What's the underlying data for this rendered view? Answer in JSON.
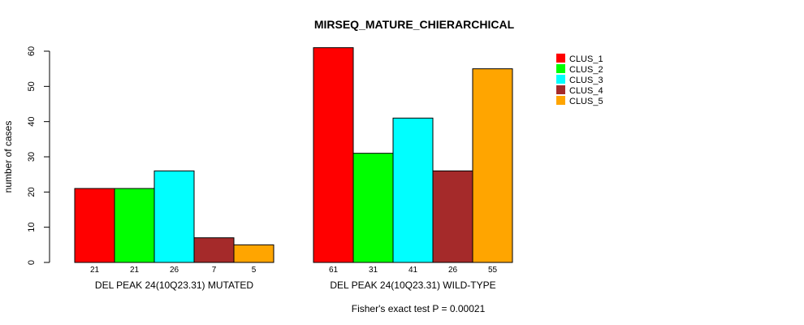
{
  "chart_data": {
    "type": "bar",
    "title": "MIRSEQ_MATURE_CHIERARCHICAL",
    "ylabel": "number of cases",
    "ylim": [
      0,
      60
    ],
    "yticks": [
      0,
      10,
      20,
      30,
      40,
      50,
      60
    ],
    "groups": [
      "DEL PEAK 24(10Q23.31) MUTATED",
      "DEL PEAK 24(10Q23.31) WILD-TYPE"
    ],
    "series": [
      {
        "name": "CLUS_1",
        "color": "#ff0000",
        "values": [
          21,
          61
        ]
      },
      {
        "name": "CLUS_2",
        "color": "#00ff00",
        "values": [
          21,
          31
        ]
      },
      {
        "name": "CLUS_3",
        "color": "#00ffff",
        "values": [
          26,
          41
        ]
      },
      {
        "name": "CLUS_4",
        "color": "#a52a2a",
        "values": [
          7,
          26
        ]
      },
      {
        "name": "CLUS_5",
        "color": "#ffa500",
        "values": [
          5,
          55
        ]
      }
    ],
    "legend_position": "top-right",
    "grid": false,
    "footnote": "Fisher's exact test P = 0.00021"
  }
}
